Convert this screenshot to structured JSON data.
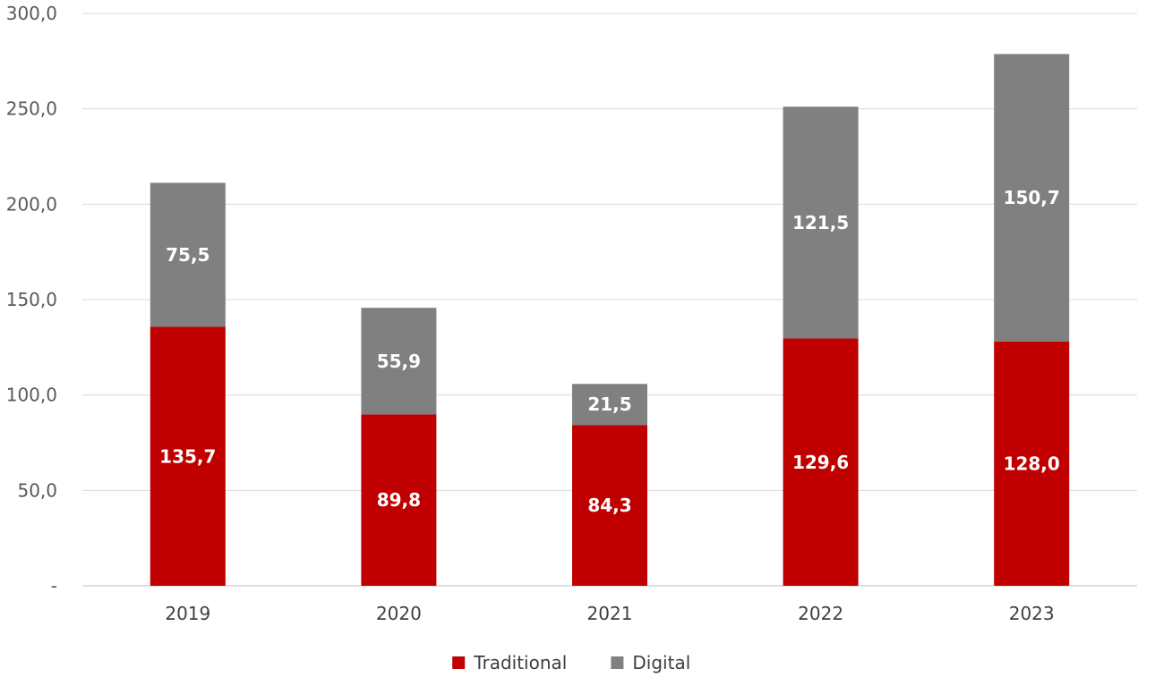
{
  "chart_data": {
    "type": "bar",
    "stacked": true,
    "categories": [
      "2019",
      "2020",
      "2021",
      "2022",
      "2023"
    ],
    "series": [
      {
        "name": "Traditional",
        "color": "#c00000",
        "values": [
          135.7,
          89.8,
          84.3,
          129.6,
          128.0
        ],
        "labels": [
          "135,7",
          "89,8",
          "84,3",
          "129,6",
          "128,0"
        ]
      },
      {
        "name": "Digital",
        "color": "#808080",
        "values": [
          75.5,
          55.9,
          21.5,
          121.5,
          150.7
        ],
        "labels": [
          "75,5",
          "55,9",
          "21,5",
          "121,5",
          "150,7"
        ]
      }
    ],
    "ylim": [
      0,
      300
    ],
    "yticks": [
      0,
      50,
      100,
      150,
      200,
      250,
      300
    ],
    "ytick_labels": [
      "-",
      "50,0",
      "100,0",
      "150,0",
      "200,0",
      "250,0",
      "300,0"
    ],
    "grid": true,
    "legend_position": "bottom"
  }
}
